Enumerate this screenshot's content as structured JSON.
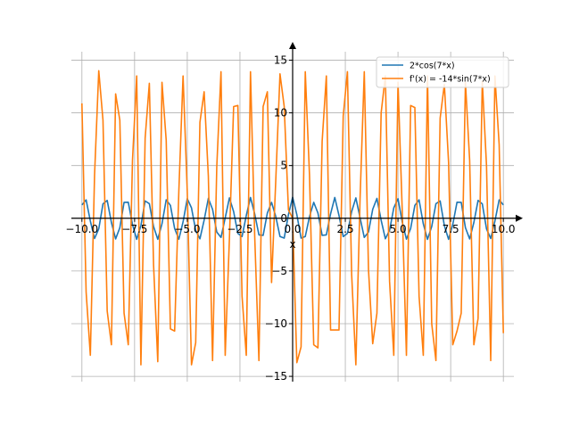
{
  "chart_data": {
    "type": "line",
    "xlabel": "x",
    "xlim": [
      -10.5,
      10.5
    ],
    "ylim": [
      -15.5,
      15.8
    ],
    "xticks": [
      -10.0,
      -7.5,
      -5.0,
      -2.5,
      0.0,
      2.5,
      5.0,
      7.5,
      10.0
    ],
    "xtick_labels": [
      "−10.0",
      "−7.5",
      "−5.0",
      "−2.5",
      "0.0",
      "2.5",
      "5.0",
      "7.5",
      "10.0"
    ],
    "yticks": [
      -15,
      -10,
      -5,
      0,
      5,
      10,
      15
    ],
    "ytick_labels": [
      "−15",
      "−10",
      "−5",
      "0",
      "5",
      "10",
      "15"
    ],
    "grid": true,
    "legend_position": "top-right",
    "series": [
      {
        "name": "2*cos(7*x)",
        "color": "#1f77b4",
        "x": [
          -10.0,
          -9.8,
          -9.6,
          -9.4,
          -9.2,
          -9.0,
          -8.8,
          -8.6,
          -8.4,
          -8.2,
          -8.0,
          -7.8,
          -7.6,
          -7.4,
          -7.2,
          -7.0,
          -6.8,
          -6.6,
          -6.4,
          -6.2,
          -6.0,
          -5.8,
          -5.6,
          -5.4,
          -5.2,
          -5.0,
          -4.8,
          -4.6,
          -4.4,
          -4.2,
          -4.0,
          -3.8,
          -3.6,
          -3.4,
          -3.2,
          -3.0,
          -2.8,
          -2.6,
          -2.4,
          -2.2,
          -2.0,
          -1.8,
          -1.6,
          -1.4,
          -1.2,
          -1.0,
          -0.8,
          -0.6,
          -0.4,
          -0.2,
          0.0,
          0.2,
          0.4,
          0.6,
          0.8,
          1.0,
          1.2,
          1.4,
          1.6,
          1.8,
          2.0,
          2.2,
          2.4,
          2.6,
          2.8,
          3.0,
          3.2,
          3.4,
          3.6,
          3.8,
          4.0,
          4.2,
          4.4,
          4.6,
          4.8,
          5.0,
          5.2,
          5.4,
          5.6,
          5.8,
          6.0,
          6.2,
          6.4,
          6.6,
          6.8,
          7.0,
          7.2,
          7.4,
          7.6,
          7.8,
          8.0,
          8.2,
          8.4,
          8.6,
          8.8,
          9.0,
          9.2,
          9.4,
          9.6,
          9.8,
          10.0
        ],
        "values": [
          1.266,
          1.744,
          -0.263,
          -1.92,
          -1.005,
          1.369,
          1.689,
          -0.4,
          -1.961,
          -0.898,
          1.508,
          1.521,
          -0.59,
          -1.996,
          -0.7,
          1.641,
          1.386,
          -0.785,
          -2.0,
          -0.524,
          1.747,
          1.223,
          -0.972,
          -1.985,
          -0.346,
          1.856,
          0.984,
          -1.149,
          -1.946,
          -0.179,
          1.885,
          0.846,
          -1.307,
          -1.819,
          0.038,
          1.931,
          0.627,
          -1.435,
          -1.737,
          0.257,
          1.97,
          0.407,
          -1.576,
          -1.621,
          0.498,
          1.508,
          0.159,
          -1.729,
          -1.884,
          0.342,
          2.0,
          0.34,
          -1.884,
          -1.731,
          0.157,
          1.508,
          0.498,
          -1.621,
          -1.576,
          0.407,
          1.97,
          0.257,
          -1.737,
          -1.435,
          0.627,
          1.931,
          0.038,
          -1.819,
          -1.307,
          0.846,
          1.885,
          -0.179,
          -1.946,
          -1.149,
          0.984,
          1.856,
          -0.346,
          -1.985,
          -0.972,
          1.223,
          1.747,
          -0.524,
          -2.0,
          -0.785,
          1.386,
          1.641,
          -0.7,
          -1.996,
          -0.59,
          1.521,
          1.508,
          -0.898,
          -1.961,
          -0.4,
          1.689,
          1.369,
          -1.005,
          -1.92,
          -0.263,
          1.744,
          1.266
        ]
      },
      {
        "name": "f'(x) = -14*sin(7*x)",
        "color": "#ff7f0e",
        "x": [
          -10.0,
          -9.8,
          -9.6,
          -9.4,
          -9.2,
          -9.0,
          -8.8,
          -8.6,
          -8.4,
          -8.2,
          -8.0,
          -7.8,
          -7.6,
          -7.4,
          -7.2,
          -7.0,
          -6.8,
          -6.6,
          -6.4,
          -6.2,
          -6.0,
          -5.8,
          -5.6,
          -5.4,
          -5.2,
          -5.0,
          -4.8,
          -4.6,
          -4.4,
          -4.2,
          -4.0,
          -3.8,
          -3.6,
          -3.4,
          -3.2,
          -3.0,
          -2.8,
          -2.6,
          -2.4,
          -2.2,
          -2.0,
          -1.8,
          -1.6,
          -1.4,
          -1.2,
          -1.0,
          -0.8,
          -0.6,
          -0.4,
          -0.2,
          0.0,
          0.2,
          0.4,
          0.6,
          0.8,
          1.0,
          1.2,
          1.4,
          1.6,
          1.8,
          2.0,
          2.2,
          2.4,
          2.6,
          2.8,
          3.0,
          3.2,
          3.4,
          3.6,
          3.8,
          4.0,
          4.2,
          4.4,
          4.6,
          4.8,
          5.0,
          5.2,
          5.4,
          5.6,
          5.8,
          6.0,
          6.2,
          6.4,
          6.6,
          6.8,
          7.0,
          7.2,
          7.4,
          7.6,
          7.8,
          8.0,
          8.2,
          8.4,
          8.6,
          8.8,
          9.0,
          9.2,
          9.4,
          9.6,
          9.8,
          10.0
        ],
        "values": [
          10.9,
          -7.0,
          -13.0,
          4.1,
          14.0,
          9.3,
          -8.8,
          -12.0,
          11.8,
          9.3,
          -9.0,
          -12.0,
          5.5,
          13.5,
          -13.9,
          7.6,
          12.8,
          -4.4,
          -13.6,
          12.9,
          7.4,
          -10.5,
          -10.7,
          2.6,
          13.5,
          2.5,
          -13.9,
          -11.8,
          9.1,
          12.0,
          4.0,
          -13.5,
          4.9,
          13.9,
          -13.0,
          -1.9,
          10.6,
          10.7,
          -7.4,
          -13.0,
          13.9,
          -1.7,
          -13.5,
          10.6,
          12.0,
          -6.1,
          3.6,
          13.7,
          10.6,
          0.8,
          0.0,
          -13.7,
          -12.2,
          13.9,
          4.1,
          -12.0,
          -12.3,
          7.3,
          13.5,
          -10.6,
          -10.6,
          -10.6,
          9.7,
          13.9,
          -5.3,
          -13.9,
          1.9,
          13.9,
          -4.9,
          -11.9,
          -9.0,
          10.0,
          13.5,
          -6.0,
          -13.0,
          12.9,
          0.8,
          -13.0,
          10.7,
          10.5,
          -7.4,
          -13.0,
          13.5,
          -10.0,
          -13.5,
          9.5,
          12.7,
          5.3,
          -12.0,
          -10.7,
          -9.0,
          12.9,
          5.5,
          -12.0,
          -9.5,
          13.0,
          5.0,
          -13.5,
          13.5,
          7.0,
          -10.9
        ]
      }
    ]
  }
}
